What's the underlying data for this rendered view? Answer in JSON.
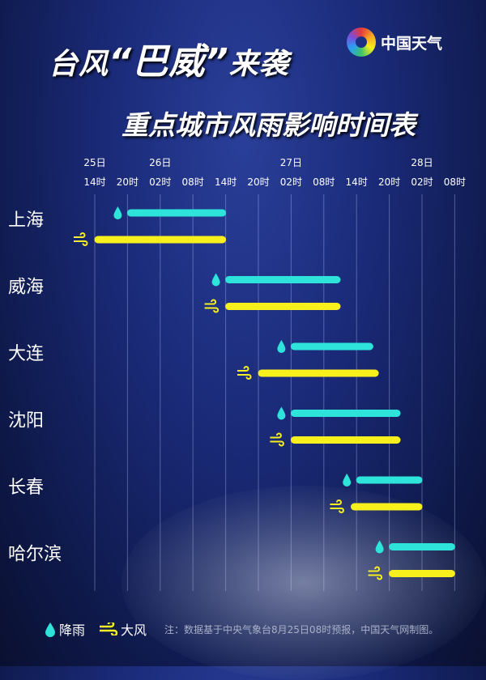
{
  "header": {
    "title_prefix": "台风",
    "title_quote_open": "“",
    "title_name": "巴威",
    "title_quote_close": "”",
    "title_suffix": "来袭",
    "subtitle": "重点城市风雨影响时间表",
    "logo_text": "中国天气"
  },
  "legend": {
    "rain": "降雨",
    "wind": "大风",
    "note": "注：数据基于中央气象台8月25日08时预报，中国天气网制图。"
  },
  "chart_data": {
    "type": "gantt",
    "title": "重点城市风雨影响时间表",
    "ticks": [
      {
        "day": "25日",
        "hour": "14时"
      },
      {
        "day": "",
        "hour": "20时"
      },
      {
        "day": "26日",
        "hour": "02时"
      },
      {
        "day": "",
        "hour": "08时"
      },
      {
        "day": "",
        "hour": "14时"
      },
      {
        "day": "",
        "hour": "20时"
      },
      {
        "day": "27日",
        "hour": "02时"
      },
      {
        "day": "",
        "hour": "08时"
      },
      {
        "day": "",
        "hour": "14时"
      },
      {
        "day": "",
        "hour": "20时"
      },
      {
        "day": "28日",
        "hour": "02时"
      },
      {
        "day": "",
        "hour": "08时"
      }
    ],
    "colors": {
      "rain": "#2ee3d9",
      "wind": "#f7f01c"
    },
    "cities": [
      {
        "name": "上海",
        "rain": [
          "25日20时",
          "26日14时"
        ],
        "wind": [
          "25日14时",
          "26日14时"
        ]
      },
      {
        "name": "威海",
        "rain": [
          "26日14时",
          "27日11时"
        ],
        "wind": [
          "26日14时",
          "27日11时"
        ]
      },
      {
        "name": "大连",
        "rain": [
          "27日02时",
          "27日17时"
        ],
        "wind": [
          "26日20时",
          "27日18时"
        ]
      },
      {
        "name": "沈阳",
        "rain": [
          "27日02时",
          "27日22时"
        ],
        "wind": [
          "27日02时",
          "27日22时"
        ]
      },
      {
        "name": "长春",
        "rain": [
          "27日14时",
          "28日02时"
        ],
        "wind": [
          "27日13时",
          "28日02时"
        ]
      },
      {
        "name": "哈尔滨",
        "rain": [
          "27日20时",
          "28日08时"
        ],
        "wind": [
          "27日20时",
          "28日08时"
        ]
      }
    ]
  }
}
